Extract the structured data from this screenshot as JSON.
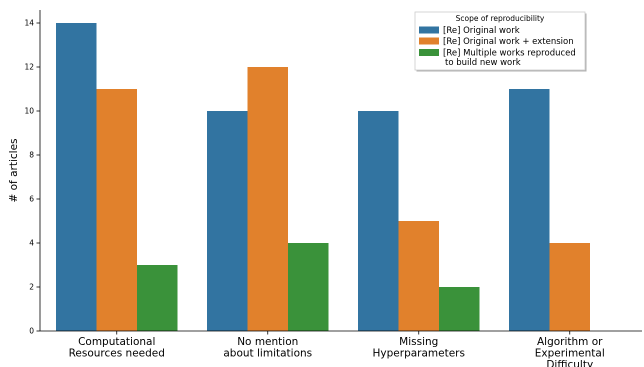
{
  "chart_data": {
    "type": "bar",
    "ylabel": "# of articles",
    "xlabel": "",
    "ylim": [
      0,
      15
    ],
    "yticks": [
      0,
      2,
      4,
      6,
      8,
      10,
      12,
      14
    ],
    "grid": false,
    "legend_title": "Scope of reproducibility",
    "legend_position": "top-right",
    "categories": [
      [
        "Computational",
        "Resources needed"
      ],
      [
        "No mention",
        "about limitations"
      ],
      [
        "Missing",
        "Hyperparameters"
      ],
      [
        "Algorithm or",
        "Experimental",
        "Difficulty"
      ]
    ],
    "series": [
      {
        "name": "[Re] Original work",
        "name_lines": [
          "[Re] Original work"
        ],
        "color": "#3274a1",
        "values": [
          14,
          10,
          10,
          11
        ]
      },
      {
        "name": "[Re] Original work + extension",
        "name_lines": [
          "[Re] Original work + extension"
        ],
        "color": "#e1812c",
        "values": [
          11,
          12,
          5,
          4
        ]
      },
      {
        "name": "[Re] Multiple works reproduced to build new work",
        "name_lines": [
          "[Re] Multiple works reproduced",
          "to build new work"
        ],
        "color": "#3a923a",
        "values": [
          3,
          4,
          2,
          0
        ]
      }
    ]
  }
}
